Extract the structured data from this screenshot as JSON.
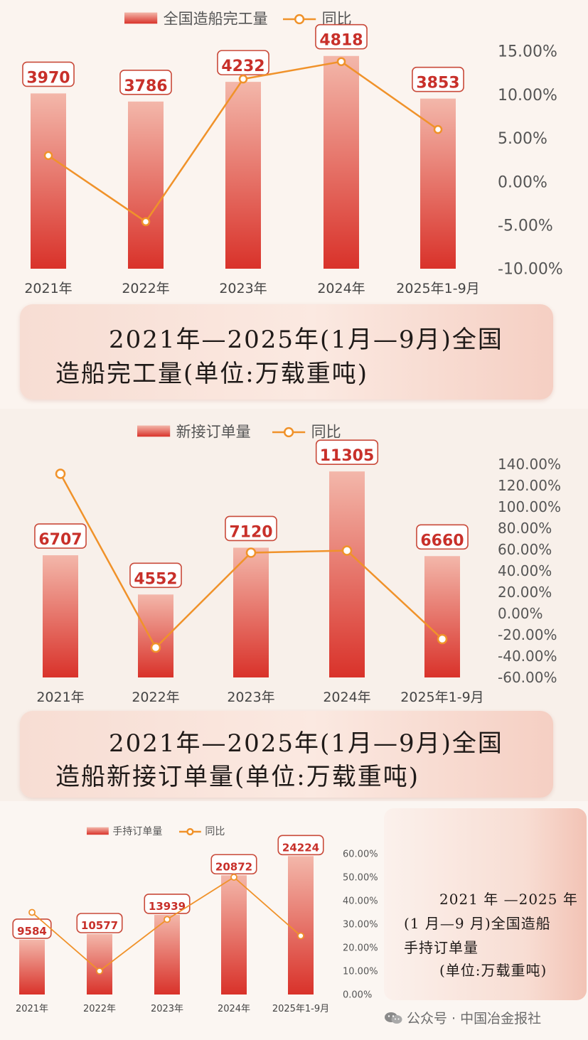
{
  "colors": {
    "bar_top": "#f3b7aa",
    "bar_bottom": "#d9322a",
    "line": "#f0922a",
    "label_border": "#c94a3a",
    "label_text": "#c8302a",
    "axis_text": "#555555"
  },
  "chart_data": [
    {
      "type": "bar",
      "title": "2021年—2025年(1月—9月)全国造船完工量(单位:万载重吨)",
      "categories": [
        "2021年",
        "2022年",
        "2023年",
        "2024年",
        "2025年1-9月"
      ],
      "series": [
        {
          "name": "全国造船完工量",
          "type": "bar",
          "values": [
            3970,
            3786,
            4232,
            4818,
            3853
          ]
        },
        {
          "name": "同比",
          "type": "line",
          "axis": "right",
          "values": [
            3.0,
            -4.6,
            11.8,
            13.8,
            6.0
          ]
        }
      ],
      "bar_labels": [
        "3970",
        "3786",
        "4232",
        "4818",
        "3853"
      ],
      "bar_ylim": [
        0,
        5200
      ],
      "right_ylim": [
        -10,
        15
      ],
      "right_ticks": [
        "15.00%",
        "10.00%",
        "5.00%",
        "0.00%",
        "-5.00%",
        "-10.00%"
      ],
      "legend": [
        "全国造船完工量",
        "同比"
      ],
      "caption": [
        "2021年—2025年(1月—9月)全国",
        "造船完工量(单位:万载重吨)"
      ]
    },
    {
      "type": "bar",
      "title": "2021年—2025年(1月—9月)全国造船新接订单量(单位:万载重吨)",
      "categories": [
        "2021年",
        "2022年",
        "2023年",
        "2024年",
        "2025年1-9月"
      ],
      "series": [
        {
          "name": "新接订单量",
          "type": "bar",
          "values": [
            6707,
            4552,
            7120,
            11305,
            6660
          ]
        },
        {
          "name": "同比",
          "type": "line",
          "axis": "right",
          "values": [
            131,
            -32,
            57,
            59,
            -24
          ]
        }
      ],
      "bar_labels": [
        "6707",
        "4552",
        "7120",
        "11305",
        "6660"
      ],
      "bar_ylim": [
        0,
        12600
      ],
      "right_ylim": [
        -60,
        140
      ],
      "right_ticks": [
        "140.00%",
        "120.00%",
        "100.00%",
        "80.00%",
        "60.00%",
        "40.00%",
        "20.00%",
        "0.00%",
        "-20.00%",
        "-40.00%",
        "-60.00%"
      ],
      "legend": [
        "新接订单量",
        "同比"
      ],
      "caption": [
        "2021年—2025年(1月—9月)全国",
        "造船新接订单量(单位:万载重吨)"
      ]
    },
    {
      "type": "bar",
      "title": "2021年—2025年(1月—9月)全国造船手持订单量(单位:万载重吨)",
      "categories": [
        "2021年",
        "2022年",
        "2023年",
        "2024年",
        "2025年1-9月"
      ],
      "series": [
        {
          "name": "手持订单量",
          "type": "bar",
          "values": [
            9584,
            10577,
            13939,
            20872,
            24224
          ]
        },
        {
          "name": "同比",
          "type": "line",
          "axis": "right",
          "values": [
            35,
            10,
            32,
            50,
            25
          ]
        }
      ],
      "bar_labels": [
        "9584",
        "10577",
        "13939",
        "20872",
        "24224"
      ],
      "bar_ylim": [
        0,
        27000
      ],
      "right_ylim": [
        0,
        60
      ],
      "right_ticks": [
        "60.00%",
        "50.00%",
        "40.00%",
        "30.00%",
        "20.00%",
        "10.00%",
        "0.00%"
      ],
      "legend": [
        "手持订单量",
        "同比"
      ],
      "caption": [
        "2021 年 —2025 年",
        "(1 月—9 月)全国造船",
        "手持订单量",
        "(单位:万载重吨)"
      ]
    }
  ],
  "watermark": "公众号 · 中国冶金报社",
  "watermark_icon": "wechat-icon"
}
